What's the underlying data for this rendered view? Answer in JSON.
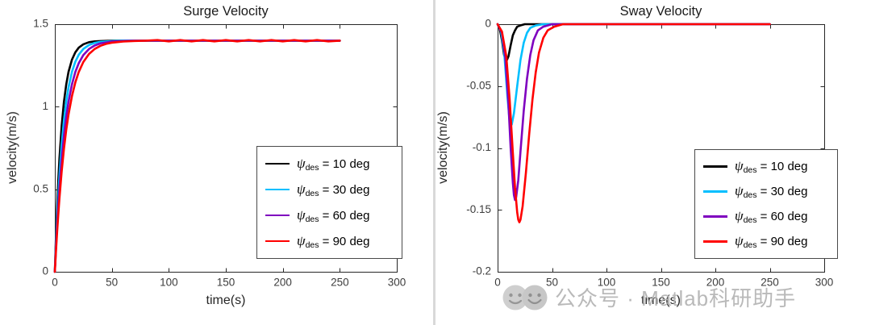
{
  "watermark": {
    "text": "公众号 · Matlab科研助手",
    "color": "#b4b4b4"
  },
  "chart_data": [
    {
      "type": "line",
      "title": "Surge Velocity",
      "xlabel": "time(s)",
      "ylabel": "velocity(m/s)",
      "xlim": [
        0,
        300
      ],
      "ylim": [
        0,
        1.5
      ],
      "xticks": [
        0,
        50,
        100,
        150,
        200,
        250,
        300
      ],
      "xtick_labels": [
        "0",
        "50",
        "100",
        "150",
        "200",
        "250",
        "300"
      ],
      "yticks": [
        0,
        0.5,
        1,
        1.5
      ],
      "ytick_labels": [
        "0",
        "0.5",
        "1",
        "1.5"
      ],
      "grid": false,
      "legend_position": "lower right",
      "series": [
        {
          "name": "ψ_des = 10 deg",
          "legend": {
            "symbol": "ψ",
            "subscript": "des",
            "suffix": " = 10 deg"
          },
          "color": "#000000",
          "points": [
            [
              0,
              0
            ],
            [
              1,
              0.215
            ],
            [
              2,
              0.397
            ],
            [
              3,
              0.551
            ],
            [
              4,
              0.681
            ],
            [
              6,
              0.885
            ],
            [
              8,
              1.031
            ],
            [
              10,
              1.135
            ],
            [
              12,
              1.211
            ],
            [
              15,
              1.285
            ],
            [
              18,
              1.33
            ],
            [
              21,
              1.358
            ],
            [
              25,
              1.378
            ],
            [
              30,
              1.391
            ],
            [
              35,
              1.396
            ],
            [
              40,
              1.398
            ],
            [
              50,
              1.4
            ],
            [
              100,
              1.4
            ],
            [
              150,
              1.4
            ],
            [
              200,
              1.4
            ],
            [
              250,
              1.4
            ]
          ]
        },
        {
          "name": "ψ_des = 30 deg",
          "legend": {
            "symbol": "ψ",
            "subscript": "des",
            "suffix": " = 30 deg"
          },
          "color": "#00bfff",
          "points": [
            [
              0,
              0
            ],
            [
              1,
              0.175
            ],
            [
              2,
              0.328
            ],
            [
              3,
              0.462
            ],
            [
              4,
              0.578
            ],
            [
              6,
              0.771
            ],
            [
              8,
              0.918
            ],
            [
              10,
              1.031
            ],
            [
              12,
              1.117
            ],
            [
              15,
              1.211
            ],
            [
              18,
              1.273
            ],
            [
              21,
              1.315
            ],
            [
              25,
              1.35
            ],
            [
              30,
              1.374
            ],
            [
              35,
              1.387
            ],
            [
              40,
              1.393
            ],
            [
              50,
              1.398
            ],
            [
              60,
              1.4
            ],
            [
              100,
              1.4
            ],
            [
              150,
              1.4
            ],
            [
              200,
              1.4
            ],
            [
              250,
              1.4
            ]
          ]
        },
        {
          "name": "ψ_des = 60 deg",
          "legend": {
            "symbol": "ψ",
            "subscript": "des",
            "suffix": " = 60 deg"
          },
          "color": "#7f00bf",
          "points": [
            [
              0,
              0
            ],
            [
              1,
              0.148
            ],
            [
              2,
              0.279
            ],
            [
              3,
              0.396
            ],
            [
              4,
              0.502
            ],
            [
              6,
              0.681
            ],
            [
              8,
              0.825
            ],
            [
              10,
              0.939
            ],
            [
              12,
              1.031
            ],
            [
              15,
              1.135
            ],
            [
              18,
              1.211
            ],
            [
              21,
              1.264
            ],
            [
              25,
              1.313
            ],
            [
              30,
              1.35
            ],
            [
              35,
              1.371
            ],
            [
              40,
              1.384
            ],
            [
              50,
              1.395
            ],
            [
              60,
              1.398
            ],
            [
              70,
              1.4
            ],
            [
              100,
              1.4
            ],
            [
              150,
              1.4
            ],
            [
              200,
              1.4
            ],
            [
              250,
              1.4
            ]
          ]
        },
        {
          "name": "ψ_des = 90 deg",
          "legend": {
            "symbol": "ψ",
            "subscript": "des",
            "suffix": " = 90 deg"
          },
          "color": "#ff0000",
          "points": [
            [
              0,
              0
            ],
            [
              1,
              0.127
            ],
            [
              2,
              0.242
            ],
            [
              3,
              0.345
            ],
            [
              4,
              0.442
            ],
            [
              6,
              0.609
            ],
            [
              8,
              0.746
            ],
            [
              10,
              0.86
            ],
            [
              12,
              0.953
            ],
            [
              15,
              1.064
            ],
            [
              18,
              1.148
            ],
            [
              21,
              1.211
            ],
            [
              25,
              1.271
            ],
            [
              30,
              1.32
            ],
            [
              35,
              1.35
            ],
            [
              40,
              1.369
            ],
            [
              45,
              1.381
            ],
            [
              50,
              1.388
            ],
            [
              60,
              1.395
            ],
            [
              70,
              1.398
            ],
            [
              80,
              1.4
            ],
            [
              90,
              1.404
            ],
            [
              100,
              1.396
            ],
            [
              110,
              1.404
            ],
            [
              120,
              1.396
            ],
            [
              130,
              1.404
            ],
            [
              140,
              1.396
            ],
            [
              150,
              1.404
            ],
            [
              160,
              1.396
            ],
            [
              170,
              1.404
            ],
            [
              180,
              1.396
            ],
            [
              190,
              1.404
            ],
            [
              200,
              1.396
            ],
            [
              210,
              1.404
            ],
            [
              220,
              1.396
            ],
            [
              230,
              1.404
            ],
            [
              240,
              1.396
            ],
            [
              250,
              1.4
            ]
          ]
        }
      ]
    },
    {
      "type": "line",
      "title": "Sway Velocity",
      "xlabel": "time(s)",
      "ylabel": "velocity(m/s)",
      "xlim": [
        0,
        300
      ],
      "ylim": [
        -0.2,
        0
      ],
      "xticks": [
        0,
        50,
        100,
        150,
        200,
        250,
        300
      ],
      "xtick_labels": [
        "0",
        "50",
        "100",
        "150",
        "200",
        "250",
        "300"
      ],
      "yticks": [
        0,
        -0.05,
        -0.1,
        -0.15,
        -0.2
      ],
      "ytick_labels": [
        "0",
        "-0.05",
        "-0.1",
        "-0.15",
        "-0.2"
      ],
      "grid": false,
      "legend_position": "lower right",
      "series": [
        {
          "name": "ψ_des = 10 deg",
          "legend": {
            "symbol": "ψ",
            "subscript": "des",
            "suffix": " = 10 deg"
          },
          "color": "#000000",
          "points": [
            [
              0,
              0
            ],
            [
              2,
              -0.004
            ],
            [
              4,
              -0.013
            ],
            [
              6,
              -0.025
            ],
            [
              8,
              -0.03
            ],
            [
              10,
              -0.026
            ],
            [
              12,
              -0.017
            ],
            [
              14,
              -0.009
            ],
            [
              16,
              -0.005
            ],
            [
              18,
              -0.002
            ],
            [
              21,
              -0.001
            ],
            [
              25,
              0
            ],
            [
              250,
              0
            ]
          ]
        },
        {
          "name": "ψ_des = 30 deg",
          "legend": {
            "symbol": "ψ",
            "subscript": "des",
            "suffix": " = 30 deg"
          },
          "color": "#00bfff",
          "points": [
            [
              0,
              0
            ],
            [
              3,
              -0.005
            ],
            [
              6,
              -0.022
            ],
            [
              9,
              -0.058
            ],
            [
              11,
              -0.078
            ],
            [
              12,
              -0.082
            ],
            [
              13,
              -0.081
            ],
            [
              15,
              -0.072
            ],
            [
              18,
              -0.05
            ],
            [
              21,
              -0.029
            ],
            [
              24,
              -0.015
            ],
            [
              27,
              -0.007
            ],
            [
              30,
              -0.003
            ],
            [
              35,
              -0.001
            ],
            [
              42,
              0
            ],
            [
              250,
              0
            ]
          ]
        },
        {
          "name": "ψ_des = 60 deg",
          "legend": {
            "symbol": "ψ",
            "subscript": "des",
            "suffix": " = 60 deg"
          },
          "color": "#7f00bf",
          "points": [
            [
              0,
              0
            ],
            [
              4,
              -0.007
            ],
            [
              7,
              -0.026
            ],
            [
              10,
              -0.065
            ],
            [
              12,
              -0.1
            ],
            [
              14,
              -0.128
            ],
            [
              15,
              -0.138
            ],
            [
              16,
              -0.142
            ],
            [
              17,
              -0.14
            ],
            [
              19,
              -0.126
            ],
            [
              21,
              -0.103
            ],
            [
              24,
              -0.07
            ],
            [
              27,
              -0.044
            ],
            [
              30,
              -0.025
            ],
            [
              33,
              -0.013
            ],
            [
              37,
              -0.005
            ],
            [
              42,
              -0.002
            ],
            [
              50,
              0
            ],
            [
              250,
              0
            ]
          ]
        },
        {
          "name": "ψ_des = 90 deg",
          "legend": {
            "symbol": "ψ",
            "subscript": "des",
            "suffix": " = 90 deg"
          },
          "color": "#ff0000",
          "points": [
            [
              0,
              0
            ],
            [
              4,
              -0.006
            ],
            [
              8,
              -0.026
            ],
            [
              11,
              -0.06
            ],
            [
              14,
              -0.104
            ],
            [
              16,
              -0.132
            ],
            [
              18,
              -0.152
            ],
            [
              19,
              -0.158
            ],
            [
              20,
              -0.16
            ],
            [
              21,
              -0.158
            ],
            [
              23,
              -0.147
            ],
            [
              26,
              -0.12
            ],
            [
              29,
              -0.089
            ],
            [
              32,
              -0.061
            ],
            [
              35,
              -0.039
            ],
            [
              38,
              -0.023
            ],
            [
              42,
              -0.011
            ],
            [
              46,
              -0.005
            ],
            [
              52,
              -0.002
            ],
            [
              60,
              0
            ],
            [
              250,
              0
            ]
          ]
        }
      ]
    }
  ]
}
